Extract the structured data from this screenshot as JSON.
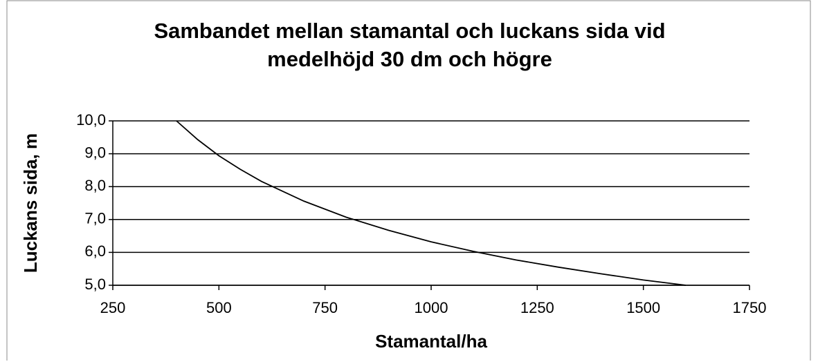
{
  "chart_data": {
    "type": "line",
    "title": [
      "Sambandet mellan stamantal och luckans sida vid",
      "medelhöjd 30 dm och högre"
    ],
    "x_label": "Stamantal/ha",
    "y_label": "Luckans sida, m",
    "x": [
      400,
      450,
      500,
      550,
      600,
      700,
      800,
      900,
      1000,
      1100,
      1200,
      1300,
      1400,
      1500,
      1600
    ],
    "series": [
      {
        "color": "#000000",
        "values": [
          10.0,
          9.43,
          8.94,
          8.53,
          8.16,
          7.56,
          7.07,
          6.67,
          6.32,
          6.03,
          5.77,
          5.55,
          5.35,
          5.16,
          5.0
        ]
      }
    ],
    "xlim": [
      250,
      1750
    ],
    "xticks": [
      250,
      500,
      750,
      1000,
      1250,
      1500,
      1750
    ],
    "ylim": [
      5,
      10
    ],
    "yticks": [
      {
        "value": 5,
        "label": "5,0"
      },
      {
        "value": 6,
        "label": "6,0"
      },
      {
        "value": 7,
        "label": "7,0"
      },
      {
        "value": 8,
        "label": "8,0"
      },
      {
        "value": 9,
        "label": "9,0"
      },
      {
        "value": 10,
        "label": "10,0"
      }
    ],
    "grid": true
  }
}
